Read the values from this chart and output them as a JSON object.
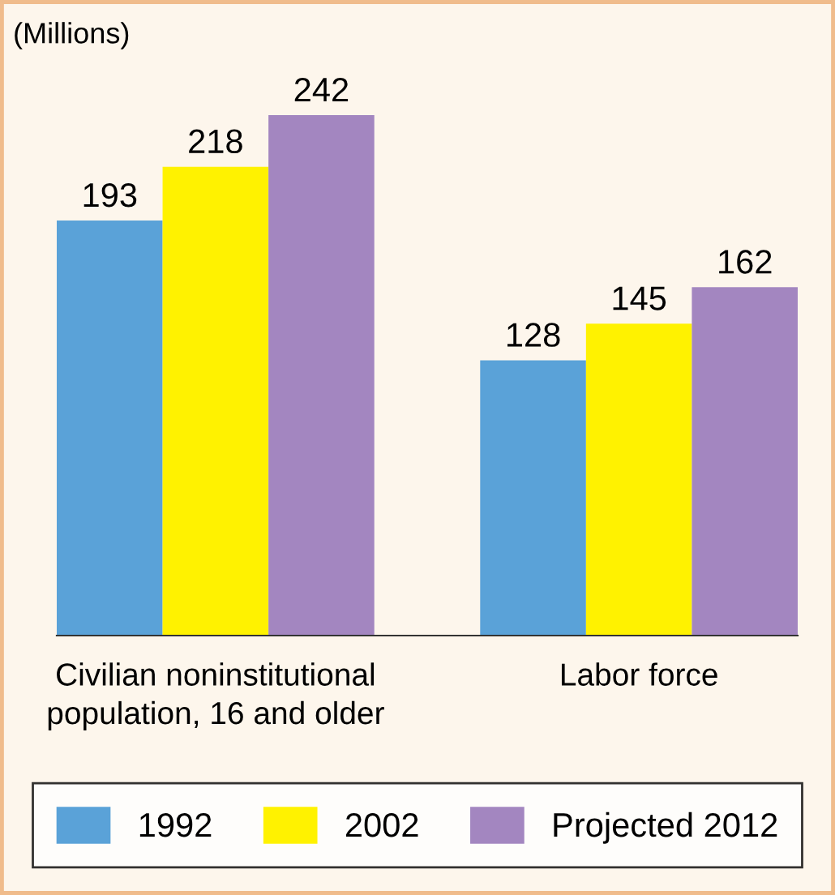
{
  "chart_data": {
    "type": "bar",
    "ylabel": "(Millions)",
    "categories": [
      "Civilian noninstitutional\npopulation, 16 and older",
      "Labor force"
    ],
    "series": [
      {
        "name": "1992",
        "color": "#5aa2d8",
        "values": [
          193,
          128
        ]
      },
      {
        "name": "2002",
        "color": "#fff200",
        "values": [
          218,
          145
        ]
      },
      {
        "name": "Projected 2012",
        "color": "#a386c0",
        "values": [
          242,
          162
        ]
      }
    ],
    "data_labels": true,
    "grid": false,
    "legend": "bottom"
  }
}
